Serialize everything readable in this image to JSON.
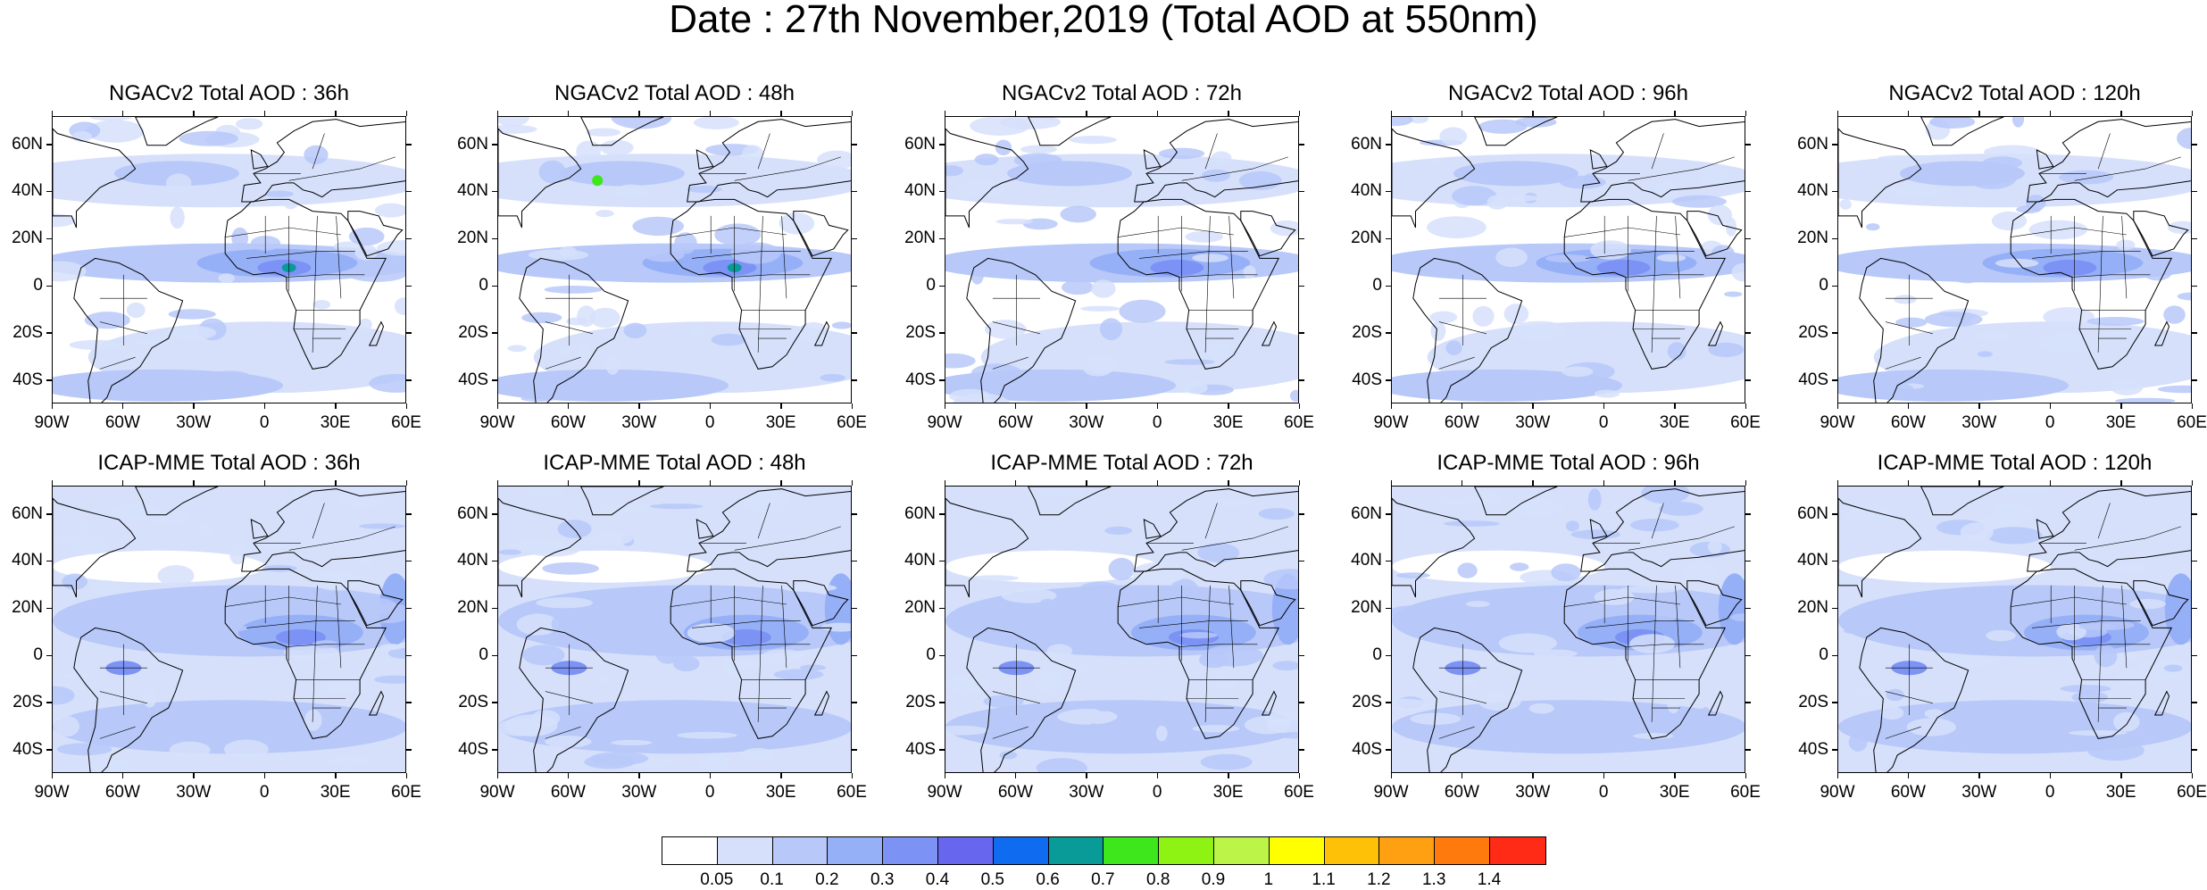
{
  "title": "Date : 27th November,2019 (Total AOD at 550nm)",
  "panels": [
    {
      "id": "ngac-36",
      "title": "NGACv2 Total AOD : 36h",
      "row": 0,
      "col": 0
    },
    {
      "id": "ngac-48",
      "title": "NGACv2 Total AOD : 48h",
      "row": 0,
      "col": 1
    },
    {
      "id": "ngac-72",
      "title": "NGACv2 Total AOD : 72h",
      "row": 0,
      "col": 2
    },
    {
      "id": "ngac-96",
      "title": "NGACv2 Total AOD : 96h",
      "row": 0,
      "col": 3
    },
    {
      "id": "ngac-120",
      "title": "NGACv2 Total AOD : 120h",
      "row": 0,
      "col": 4
    },
    {
      "id": "icap-36",
      "title": "ICAP-MME Total AOD : 36h",
      "row": 1,
      "col": 0
    },
    {
      "id": "icap-48",
      "title": "ICAP-MME Total AOD : 48h",
      "row": 1,
      "col": 1
    },
    {
      "id": "icap-72",
      "title": "ICAP-MME Total AOD : 72h",
      "row": 1,
      "col": 2
    },
    {
      "id": "icap-96",
      "title": "ICAP-MME Total AOD : 96h",
      "row": 1,
      "col": 3
    },
    {
      "id": "icap-120",
      "title": "ICAP-MME Total AOD : 120h",
      "row": 1,
      "col": 4
    }
  ],
  "lat_labels": [
    "60N",
    "40N",
    "20N",
    "0",
    "20S",
    "40S"
  ],
  "lon_labels": [
    "90W",
    "60W",
    "30W",
    "0",
    "30E",
    "60E"
  ],
  "colorbar": {
    "colors": [
      "#ffffff",
      "#d6e0fb",
      "#b7c8f9",
      "#96b0f8",
      "#7c93f5",
      "#6666ee",
      "#0f6bf0",
      "#089b98",
      "#3ee61c",
      "#8ef313",
      "#bcf547",
      "#ffff00",
      "#ffc107",
      "#ff9f12",
      "#ff7a0c",
      "#ff2b16"
    ],
    "labels": [
      "0.05",
      "0.1",
      "0.2",
      "0.3",
      "0.4",
      "0.5",
      "0.6",
      "0.7",
      "0.8",
      "0.9",
      "1",
      "1.1",
      "1.2",
      "1.3",
      "1.4"
    ]
  }
}
